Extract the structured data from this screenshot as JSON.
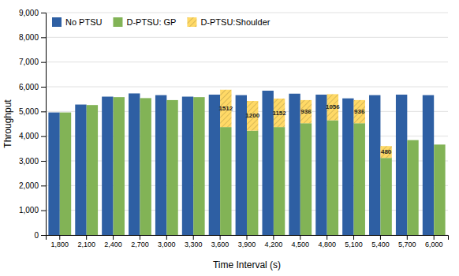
{
  "chart_data": {
    "type": "bar",
    "categories": [
      "1,800",
      "2,100",
      "2,400",
      "2,700",
      "3,000",
      "3,300",
      "3,600",
      "3,900",
      "4,200",
      "4,500",
      "4,800",
      "5,100",
      "5,400",
      "5,700",
      "6,000"
    ],
    "series": [
      {
        "name": "No PTSU",
        "color": "#2E5FA3",
        "values": [
          4960,
          5280,
          5600,
          5730,
          5660,
          5600,
          5680,
          5660,
          5840,
          5720,
          5680,
          5530,
          5660,
          5680,
          5660
        ]
      },
      {
        "name": "D-PTSU: GP",
        "color": "#82B356",
        "values": [
          4960,
          5260,
          5580,
          5540,
          5460,
          5580,
          4368,
          4224,
          4368,
          4524,
          4644,
          4524,
          3120,
          3840,
          3660
        ]
      },
      {
        "name": "D-PTSU:Shoulder",
        "color": "#FFD966",
        "stacked": true,
        "data_labels": true,
        "values": [
          0,
          0,
          0,
          0,
          0,
          0,
          1512,
          1200,
          1152,
          936,
          1056,
          936,
          480,
          0,
          0
        ]
      }
    ],
    "xlabel": "Time Interval (s)",
    "ylabel": "Throughput",
    "ylim": [
      0,
      9000
    ],
    "yticks": [
      0,
      {
        "value": 1000,
        "label": "1,000"
      },
      {
        "value": 2000,
        "label": "2,000"
      },
      {
        "value": 3000,
        "label": "3,000"
      },
      {
        "value": 4000,
        "label": "4,000"
      },
      {
        "value": 5000,
        "label": "5,000"
      },
      {
        "value": 6000,
        "label": "6,000"
      },
      {
        "value": 7000,
        "label": "7,000"
      },
      {
        "value": 8000,
        "label": "8,000"
      },
      {
        "value": 9000,
        "label": "9,000"
      }
    ],
    "grid": true,
    "legend": "upper left"
  }
}
